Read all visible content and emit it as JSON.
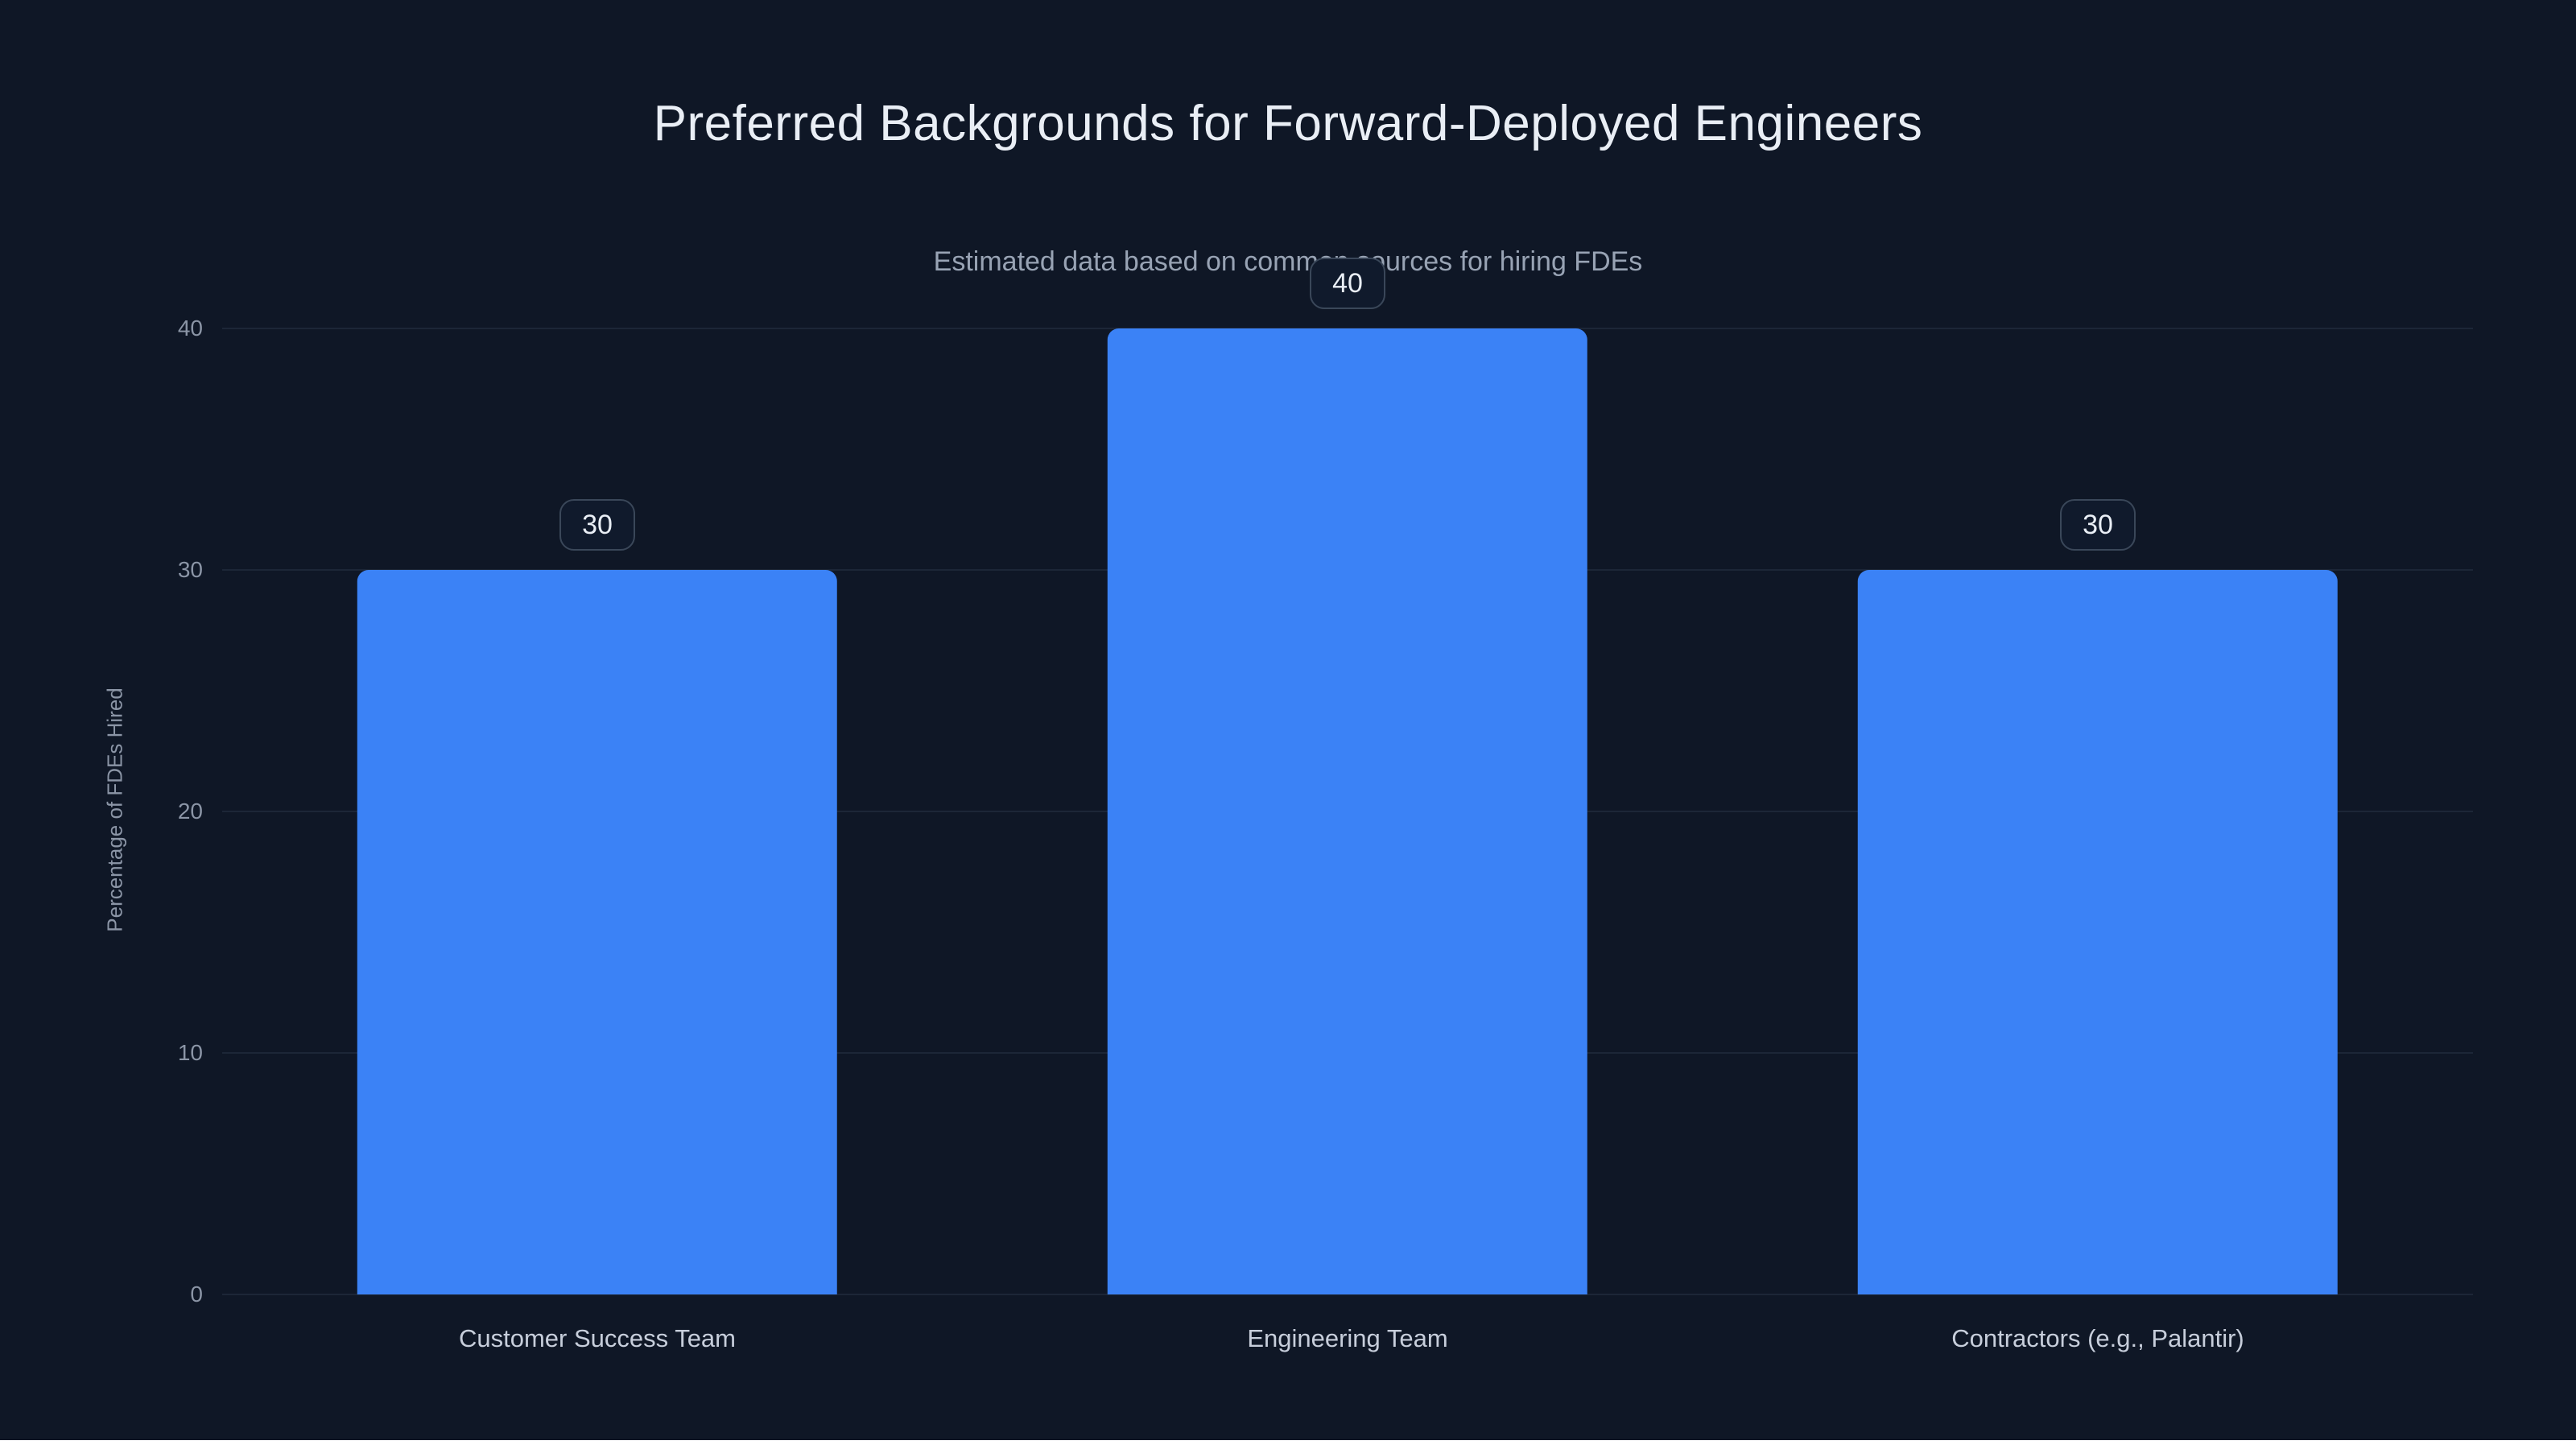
{
  "chart_data": {
    "type": "bar",
    "title": "Preferred Backgrounds for Forward-Deployed Engineers",
    "subtitle": "Estimated data based on common sources for hiring FDEs",
    "categories": [
      "Customer Success Team",
      "Engineering Team",
      "Contractors (e.g., Palantir)"
    ],
    "values": [
      30,
      40,
      30
    ],
    "value_labels": [
      "30",
      "40",
      "30"
    ],
    "xlabel": "",
    "ylabel": "Percentage of FDEs Hired",
    "ylim": [
      0,
      40
    ],
    "yticks": [
      0,
      10,
      20,
      30,
      40
    ],
    "grid": true,
    "legend": false,
    "bar_color": "#3b82f6",
    "background_color": "#0f1726",
    "value_badge_border_color": "#3a4759",
    "grid_color": "#1c2637"
  }
}
